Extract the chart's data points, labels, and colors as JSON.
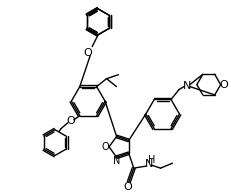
{
  "bg_color": "#ffffff",
  "line_color": "#000000",
  "line_width": 1.0,
  "font_size": 7,
  "fig_width": 2.31,
  "fig_height": 1.93,
  "dpi": 100,
  "xlim": [
    0,
    231
  ],
  "ylim": [
    0,
    193
  ]
}
